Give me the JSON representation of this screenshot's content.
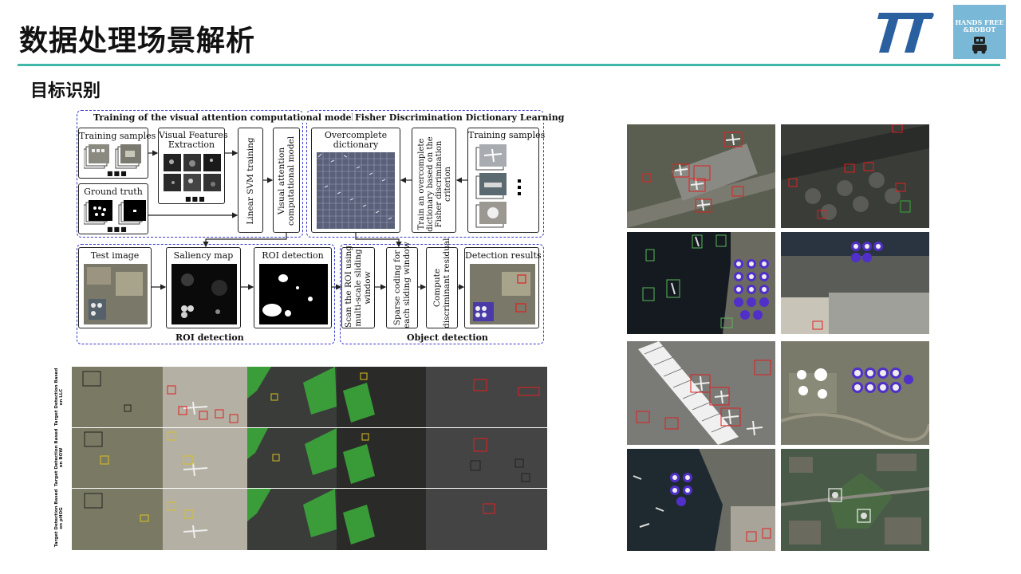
{
  "page": {
    "title": "数据处理场景解析",
    "subtitle": "目标识别"
  },
  "logos": {
    "hf_line1": "HANDS FREE",
    "hf_line2": "&ROBOT"
  },
  "diagram": {
    "training_attention_title": "Training of the visual attention computational model",
    "fisher_title": "Fisher Discrimination Dictionary Learning",
    "training_samples": "Training samples",
    "visual_features_1": "Visual Features",
    "visual_features_2": "Extraction",
    "ground_truth": "Ground truth",
    "linear_svm": "Linear SVM training",
    "vam_1": "Visual attention",
    "vam_2": "computational model",
    "overcomplete_1": "Overcomplete",
    "overcomplete_2": "dictionary",
    "train_over_1": "Train an overcomplete",
    "train_over_2": "dictionary based on the",
    "train_over_3": "Fisher discrimination",
    "train_over_4": "criterion",
    "training_samples_right": "Training samples",
    "test_image": "Test image",
    "saliency_map": "Saliency map",
    "roi_detection_box": "ROI detection",
    "scan_1": "Scan the ROI using",
    "scan_2": "multi-scale sliding",
    "scan_3": "window",
    "sparse_1": "Sparse coding for",
    "sparse_2": "each sliding window",
    "compute_1": "Compute",
    "compute_2": "discriminant residual",
    "detection_results": "Detection results",
    "roi_detection_section": "ROI detection",
    "object_detection_section": "Object detection",
    "ellipsis": "■■■"
  },
  "strip": {
    "row_labels": [
      "Target Detection Based on LLC",
      "Target Detection Based on BOW",
      "Target Detection Based on pHOG"
    ]
  },
  "colors": {
    "accent_rule": "#40b8a8",
    "dashed_border": "#3a3ac8",
    "logo_blue": "#2a5fa0",
    "logo_bg": "#7ab8d8",
    "detection_red": "#e02020",
    "tank_purple": "#5030c8"
  }
}
